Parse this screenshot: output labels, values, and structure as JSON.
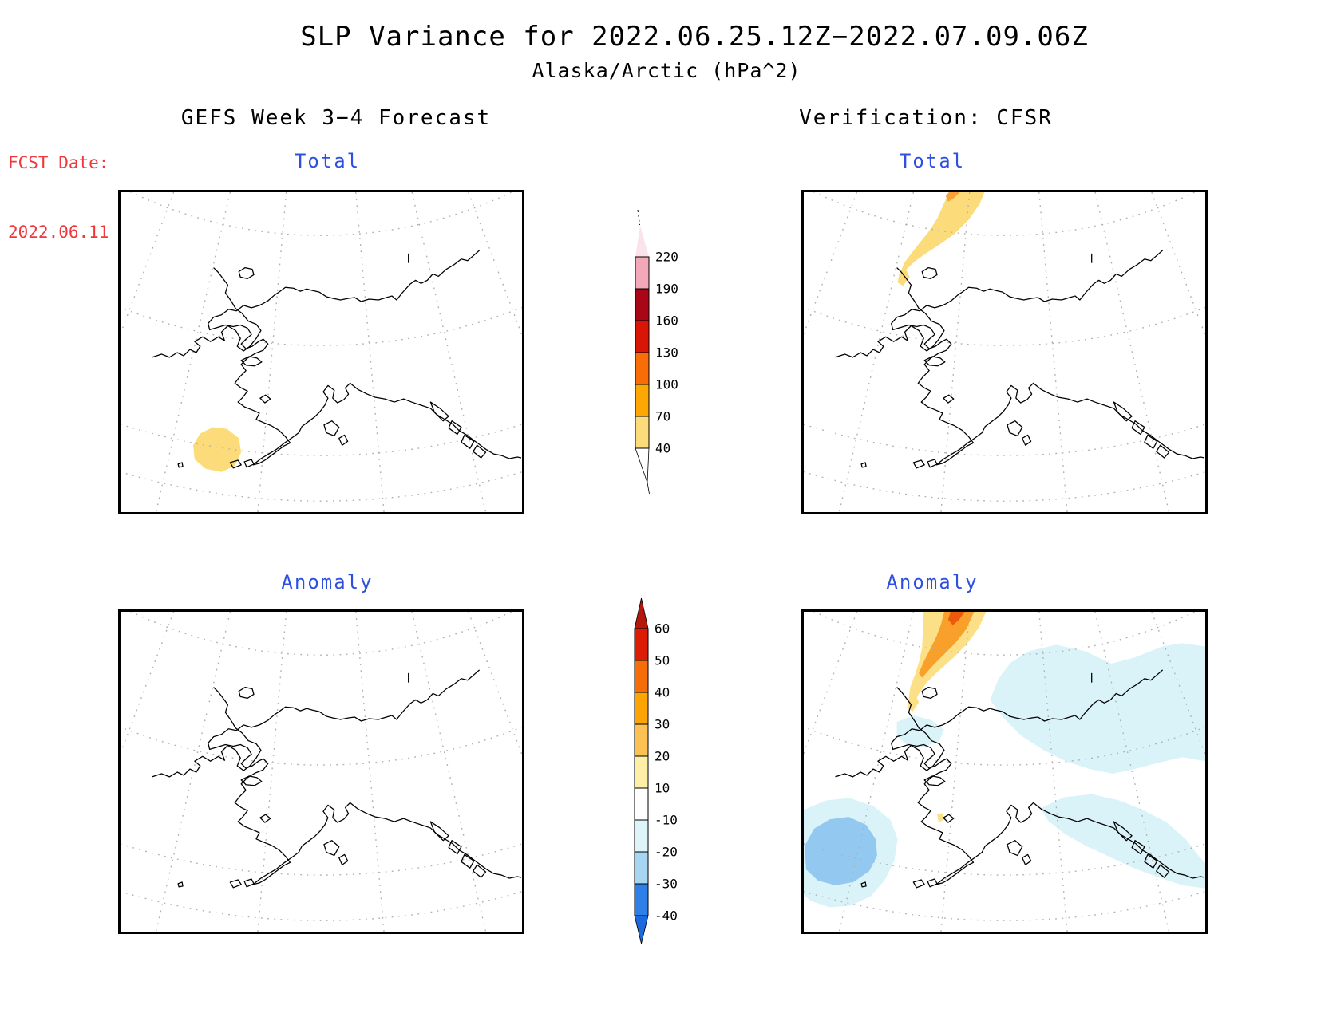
{
  "title": {
    "line1": "SLP Variance for 2022.06.25.12Z−2022.07.09.06Z",
    "line2": "Alaska/Arctic (hPa^2)"
  },
  "fcst": {
    "label": "FCST Date:",
    "date": "2022.06.11",
    "color": "#f0383c"
  },
  "columns": {
    "left_header": "GEFS Week 3−4 Forecast",
    "right_header": "Verification: CFSR"
  },
  "panels": [
    {
      "id": "gefs-total",
      "label": "Total"
    },
    {
      "id": "cfsr-total",
      "label": "Total"
    },
    {
      "id": "gefs-anomaly",
      "label": "Anomaly"
    },
    {
      "id": "cfsr-anomaly",
      "label": "Anomaly"
    }
  ],
  "label_color": "#2d50e0",
  "colorbars": {
    "total": {
      "ticks": [
        "220",
        "190",
        "160",
        "130",
        "100",
        "70",
        "40"
      ],
      "arrow_top": "#fbe3eb",
      "segments": [
        "#f3a8ba",
        "#a90617",
        "#d91505",
        "#f96d08",
        "#fda705",
        "#fcdc7a"
      ]
    },
    "anomaly": {
      "ticks": [
        "60",
        "50",
        "40",
        "30",
        "20",
        "10",
        "-10",
        "-20",
        "-30",
        "-40"
      ],
      "arrow_top": "#b5170b",
      "segments": [
        "#dd1c05",
        "#f66c09",
        "#fda405",
        "#fdc153",
        "#fdf0a6",
        "#ffffff",
        "#ddf4f9",
        "#a7d6f3",
        "#2e80e8"
      ],
      "arrow_bottom": "#1a6add"
    }
  },
  "map_fills": {
    "yellow": "#fcdc7a",
    "pale_yellow": "#fce088",
    "orange": "#f9a02a",
    "orange_sliver": "#f9a23c",
    "orange_red": "#ee5a0c",
    "cyan": "#daf3f8",
    "light_blue": "#93c9f1",
    "graticule": "#b0b0b0",
    "coast": "#000000"
  },
  "chart_data": [
    {
      "type": "heatmap",
      "title": "GEFS Week 3-4 Forecast - Total",
      "units": "hPa^2",
      "scale_levels": [
        40,
        70,
        100,
        130,
        160,
        190,
        220
      ],
      "features": [
        {
          "value_range": "40-70",
          "location": "small blob in southern Bering Sea southwest of the Alaska Peninsula"
        }
      ]
    },
    {
      "type": "heatmap",
      "title": "Verification: CFSR - Total",
      "units": "hPa^2",
      "scale_levels": [
        40,
        70,
        100,
        130,
        160,
        190,
        220
      ],
      "features": [
        {
          "value_range": "40-70",
          "location": "curved wedge over Arctic Ocean north of Chukotka at top of panel"
        },
        {
          "value_range": "70-100",
          "location": "tiny sliver at very top edge of the wedge"
        }
      ]
    },
    {
      "type": "heatmap",
      "title": "GEFS Week 3-4 Forecast - Anomaly",
      "units": "hPa^2",
      "scale_levels": [
        -40,
        -30,
        -20,
        -10,
        10,
        20,
        30,
        40,
        50,
        60
      ],
      "features": []
    },
    {
      "type": "heatmap",
      "title": "Verification: CFSR - Anomaly",
      "units": "hPa^2",
      "scale_levels": [
        -40,
        -30,
        -20,
        -10,
        10,
        20,
        30,
        40,
        50,
        60
      ],
      "features": [
        {
          "value_range": "10 to 50",
          "location": "layered wedge (yellow/orange/red-orange) over Arctic Ocean north of Chukotka"
        },
        {
          "value_range": "-10 to -20",
          "location": "broad pale-cyan areas over interior/eastern Alaska and Gulf of Alaska"
        },
        {
          "value_range": "-20 to -30",
          "location": "light-blue blob in southwestern Bering Sea at bottom-left, with pale-cyan halo"
        }
      ]
    }
  ]
}
